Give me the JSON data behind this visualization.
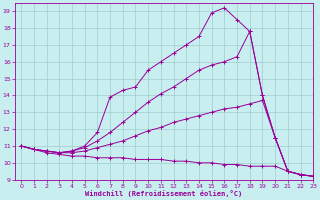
{
  "xlabel": "Windchill (Refroidissement éolien,°C)",
  "xlim": [
    -0.5,
    23
  ],
  "ylim": [
    9,
    19.5
  ],
  "xticks": [
    0,
    1,
    2,
    3,
    4,
    5,
    6,
    7,
    8,
    9,
    10,
    11,
    12,
    13,
    14,
    15,
    16,
    17,
    18,
    19,
    20,
    21,
    22,
    23
  ],
  "yticks": [
    9,
    10,
    11,
    12,
    13,
    14,
    15,
    16,
    17,
    18,
    19
  ],
  "bg_color": "#c8eef0",
  "line_color": "#990099",
  "grid_color": "#a0cdd0",
  "lines": [
    {
      "x": [
        0,
        1,
        2,
        3,
        4,
        5,
        6,
        7,
        8,
        9,
        10,
        11,
        12,
        13,
        14,
        15,
        16,
        17,
        18,
        19,
        20,
        21,
        22,
        23
      ],
      "y": [
        11.0,
        10.8,
        10.6,
        10.5,
        10.4,
        10.4,
        10.3,
        10.3,
        10.3,
        10.2,
        10.2,
        10.2,
        10.1,
        10.1,
        10.0,
        10.0,
        9.9,
        9.9,
        9.8,
        9.8,
        9.8,
        9.5,
        9.3,
        9.2
      ]
    },
    {
      "x": [
        0,
        1,
        2,
        3,
        4,
        5,
        6,
        7,
        8,
        9,
        10,
        11,
        12,
        13,
        14,
        15,
        16,
        17,
        18,
        19,
        20,
        21,
        22,
        23
      ],
      "y": [
        11.0,
        10.8,
        10.7,
        10.6,
        10.6,
        10.7,
        10.9,
        11.1,
        11.3,
        11.6,
        11.9,
        12.1,
        12.4,
        12.6,
        12.8,
        13.0,
        13.2,
        13.3,
        13.5,
        13.7,
        11.5,
        9.5,
        9.3,
        9.2
      ]
    },
    {
      "x": [
        0,
        1,
        2,
        3,
        4,
        5,
        6,
        7,
        8,
        9,
        10,
        11,
        12,
        13,
        14,
        15,
        16,
        17,
        18,
        19,
        20,
        21,
        22,
        23
      ],
      "y": [
        11.0,
        10.8,
        10.7,
        10.6,
        10.7,
        10.9,
        11.3,
        11.8,
        12.4,
        13.0,
        13.6,
        14.1,
        14.5,
        15.0,
        15.5,
        15.8,
        16.0,
        16.3,
        17.8,
        14.0,
        11.5,
        9.5,
        9.3,
        9.2
      ]
    },
    {
      "x": [
        0,
        1,
        2,
        3,
        4,
        5,
        6,
        7,
        8,
        9,
        10,
        11,
        12,
        13,
        14,
        15,
        16,
        17,
        18,
        19,
        20,
        21,
        22,
        23
      ],
      "y": [
        11.0,
        10.8,
        10.7,
        10.6,
        10.7,
        11.0,
        11.8,
        13.9,
        14.3,
        14.5,
        15.5,
        16.0,
        16.5,
        17.0,
        17.5,
        18.9,
        19.2,
        18.5,
        17.8,
        14.0,
        11.5,
        9.5,
        9.3,
        9.2
      ]
    }
  ]
}
